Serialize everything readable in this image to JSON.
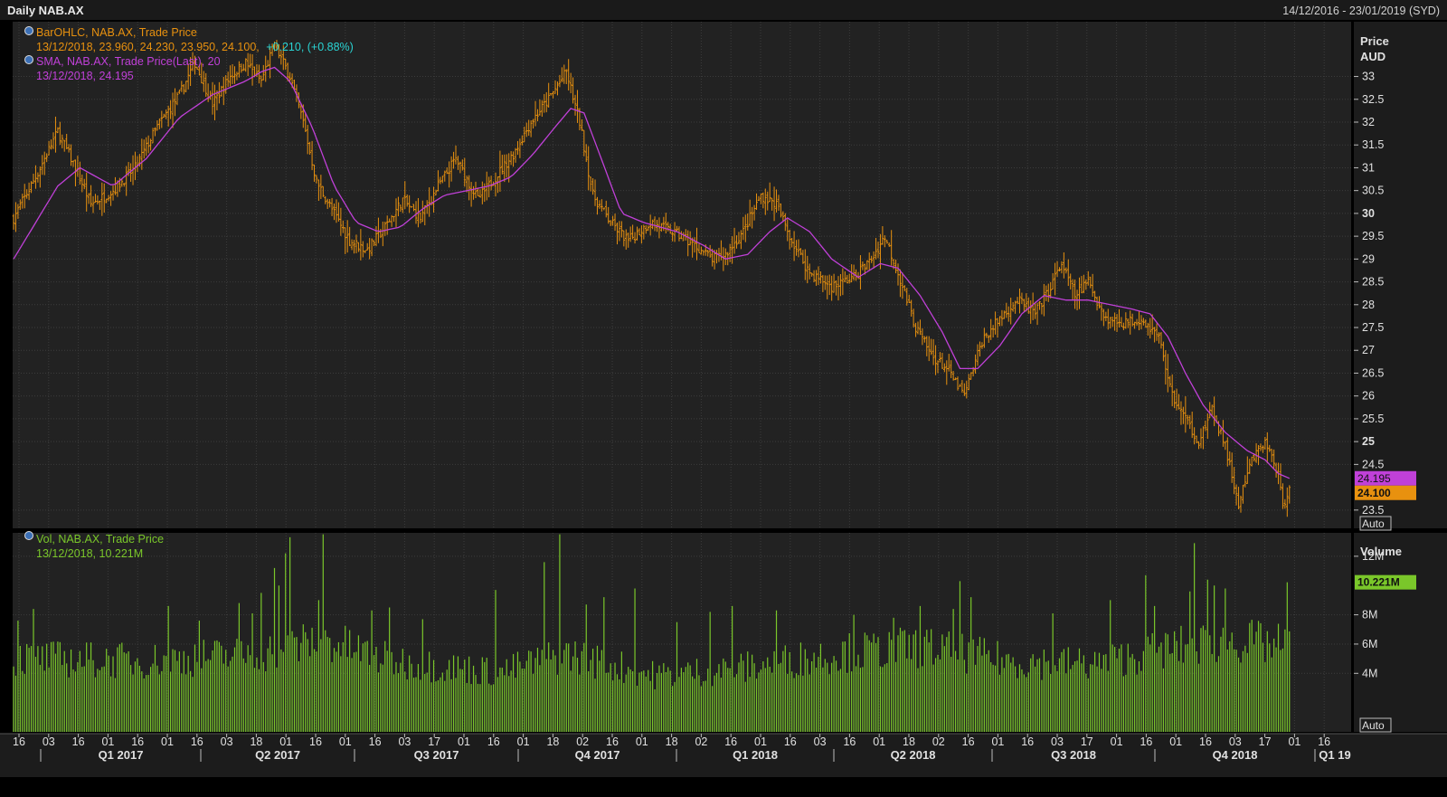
{
  "header": {
    "title": "Daily NAB.AX",
    "date_range": "14/12/2016 - 23/01/2019 (SYD)"
  },
  "colors": {
    "background": "#222222",
    "frame": "#000000",
    "grid": "#3c3c3c",
    "price_bars": "#e8910f",
    "sma_line": "#c040d8",
    "volume_bars": "#7ac72a",
    "legend_text": "#e8910f",
    "change_text": "#2ad4d4",
    "sma_text": "#c040d8",
    "volume_text": "#7ac72a"
  },
  "legend": {
    "ohlc_title": "BarOHLC, NAB.AX, Trade Price",
    "ohlc_values": "13/12/2018, 23.960, 24.230, 23.950, 24.100,",
    "ohlc_change": "+0.210, (+0.88%)",
    "sma_title": "SMA, NAB.AX, Trade Price(Last),  20",
    "sma_values": "13/12/2018, 24.195",
    "vol_title": "Vol, NAB.AX, Trade Price",
    "vol_values": "13/12/2018, 10.221M"
  },
  "price_axis": {
    "title": "Price",
    "unit": "AUD",
    "auto_label": "Auto",
    "last_sma": "24.195",
    "last_price": "24.100"
  },
  "volume_axis": {
    "title": "Volume",
    "auto_label": "Auto",
    "last_volume": "10.221M"
  },
  "chart_data": {
    "type": "ohlc-bar-with-sma-and-volume",
    "symbol": "NAB.AX",
    "price_ylim": [
      23.1,
      34.2
    ],
    "price_ticks": [
      {
        "v": 23.5,
        "label": "23.5",
        "bold": false
      },
      {
        "v": 24.5,
        "label": "24.5",
        "bold": false
      },
      {
        "v": 25,
        "label": "25",
        "bold": true
      },
      {
        "v": 25.5,
        "label": "25.5",
        "bold": false
      },
      {
        "v": 26,
        "label": "26",
        "bold": false
      },
      {
        "v": 26.5,
        "label": "26.5",
        "bold": false
      },
      {
        "v": 27,
        "label": "27",
        "bold": false
      },
      {
        "v": 27.5,
        "label": "27.5",
        "bold": false
      },
      {
        "v": 28,
        "label": "28",
        "bold": false
      },
      {
        "v": 28.5,
        "label": "28.5",
        "bold": false
      },
      {
        "v": 29,
        "label": "29",
        "bold": false
      },
      {
        "v": 29.5,
        "label": "29.5",
        "bold": false
      },
      {
        "v": 30,
        "label": "30",
        "bold": true
      },
      {
        "v": 30.5,
        "label": "30.5",
        "bold": false
      },
      {
        "v": 31,
        "label": "31",
        "bold": false
      },
      {
        "v": 31.5,
        "label": "31.5",
        "bold": false
      },
      {
        "v": 32,
        "label": "32",
        "bold": false
      },
      {
        "v": 32.5,
        "label": "32.5",
        "bold": false
      },
      {
        "v": 33,
        "label": "33",
        "bold": false
      }
    ],
    "volume_ylim": [
      0,
      13.6
    ],
    "volume_ticks": [
      {
        "v": 4,
        "label": "4M"
      },
      {
        "v": 6,
        "label": "6M"
      },
      {
        "v": 8,
        "label": "8M"
      },
      {
        "v": 12,
        "label": "12M"
      }
    ],
    "x_tick_labels": [
      "16",
      "03",
      "16",
      "01",
      "16",
      "01",
      "16",
      "03",
      "18",
      "01",
      "16",
      "01",
      "16",
      "03",
      "17",
      "01",
      "16",
      "01",
      "18",
      "02",
      "16",
      "01",
      "18",
      "02",
      "16",
      "01",
      "16",
      "03",
      "16",
      "01",
      "18",
      "02",
      "16",
      "01",
      "16",
      "03",
      "17",
      "01",
      "16",
      "01",
      "16",
      "03",
      "17",
      "01",
      "16"
    ],
    "quarter_labels": [
      "Q1 2017",
      "Q2 2017",
      "Q3 2017",
      "Q4 2017",
      "Q1 2018",
      "Q2 2018",
      "Q3 2018",
      "Q4 2018",
      "Q1 19"
    ],
    "price_path": [
      [
        0,
        29.9
      ],
      [
        10,
        30.8
      ],
      [
        20,
        31.8
      ],
      [
        28,
        31.0
      ],
      [
        35,
        30.2
      ],
      [
        45,
        30.5
      ],
      [
        55,
        31.0
      ],
      [
        65,
        31.9
      ],
      [
        75,
        32.6
      ],
      [
        82,
        33.3
      ],
      [
        90,
        32.4
      ],
      [
        98,
        33.0
      ],
      [
        105,
        33.3
      ],
      [
        112,
        32.9
      ],
      [
        118,
        33.7
      ],
      [
        125,
        33.0
      ],
      [
        131,
        32.0
      ],
      [
        137,
        30.7
      ],
      [
        145,
        30.0
      ],
      [
        152,
        29.4
      ],
      [
        160,
        29.2
      ],
      [
        168,
        29.7
      ],
      [
        176,
        30.3
      ],
      [
        184,
        29.9
      ],
      [
        192,
        30.6
      ],
      [
        200,
        31.2
      ],
      [
        210,
        30.3
      ],
      [
        218,
        30.8
      ],
      [
        226,
        31.3
      ],
      [
        234,
        32.0
      ],
      [
        242,
        32.5
      ],
      [
        250,
        33.1
      ],
      [
        256,
        32.0
      ],
      [
        262,
        30.4
      ],
      [
        270,
        29.8
      ],
      [
        278,
        29.4
      ],
      [
        288,
        29.8
      ],
      [
        298,
        29.6
      ],
      [
        308,
        29.3
      ],
      [
        316,
        29.0
      ],
      [
        322,
        29.1
      ],
      [
        330,
        29.6
      ],
      [
        338,
        30.4
      ],
      [
        345,
        30.2
      ],
      [
        352,
        29.4
      ],
      [
        360,
        28.7
      ],
      [
        370,
        28.4
      ],
      [
        380,
        28.6
      ],
      [
        388,
        29.0
      ],
      [
        394,
        29.5
      ],
      [
        400,
        28.7
      ],
      [
        408,
        27.5
      ],
      [
        415,
        26.9
      ],
      [
        422,
        26.6
      ],
      [
        430,
        26.0
      ],
      [
        438,
        27.2
      ],
      [
        446,
        27.7
      ],
      [
        454,
        28.1
      ],
      [
        462,
        27.8
      ],
      [
        468,
        28.3
      ],
      [
        474,
        28.9
      ],
      [
        480,
        28.2
      ],
      [
        486,
        28.5
      ],
      [
        494,
        27.7
      ],
      [
        502,
        27.6
      ],
      [
        510,
        27.7
      ],
      [
        518,
        27.3
      ],
      [
        524,
        26.0
      ],
      [
        530,
        25.5
      ],
      [
        536,
        25.0
      ],
      [
        542,
        25.7
      ],
      [
        548,
        24.9
      ],
      [
        554,
        23.6
      ],
      [
        560,
        24.6
      ],
      [
        566,
        25.0
      ],
      [
        572,
        24.3
      ],
      [
        574,
        23.5
      ],
      [
        577,
        24.1
      ]
    ],
    "sma_path": [
      [
        0,
        29.0
      ],
      [
        20,
        30.6
      ],
      [
        30,
        31.0
      ],
      [
        45,
        30.6
      ],
      [
        60,
        31.2
      ],
      [
        75,
        32.1
      ],
      [
        90,
        32.6
      ],
      [
        105,
        32.9
      ],
      [
        112,
        33.1
      ],
      [
        118,
        33.2
      ],
      [
        125,
        32.9
      ],
      [
        135,
        31.9
      ],
      [
        145,
        30.6
      ],
      [
        155,
        29.8
      ],
      [
        165,
        29.6
      ],
      [
        175,
        29.7
      ],
      [
        185,
        30.1
      ],
      [
        195,
        30.4
      ],
      [
        205,
        30.5
      ],
      [
        215,
        30.6
      ],
      [
        225,
        30.8
      ],
      [
        235,
        31.3
      ],
      [
        245,
        31.9
      ],
      [
        252,
        32.3
      ],
      [
        258,
        32.2
      ],
      [
        265,
        31.3
      ],
      [
        275,
        30.0
      ],
      [
        285,
        29.8
      ],
      [
        300,
        29.6
      ],
      [
        312,
        29.3
      ],
      [
        322,
        29.0
      ],
      [
        332,
        29.1
      ],
      [
        342,
        29.6
      ],
      [
        350,
        29.9
      ],
      [
        360,
        29.6
      ],
      [
        370,
        29.0
      ],
      [
        382,
        28.6
      ],
      [
        392,
        28.9
      ],
      [
        400,
        28.8
      ],
      [
        410,
        28.2
      ],
      [
        420,
        27.4
      ],
      [
        428,
        26.6
      ],
      [
        436,
        26.6
      ],
      [
        446,
        27.1
      ],
      [
        456,
        27.8
      ],
      [
        466,
        28.2
      ],
      [
        476,
        28.1
      ],
      [
        486,
        28.1
      ],
      [
        496,
        28.0
      ],
      [
        506,
        27.9
      ],
      [
        514,
        27.8
      ],
      [
        522,
        27.3
      ],
      [
        530,
        26.5
      ],
      [
        538,
        25.8
      ],
      [
        548,
        25.2
      ],
      [
        558,
        24.8
      ],
      [
        566,
        24.6
      ],
      [
        572,
        24.3
      ],
      [
        577,
        24.195
      ]
    ],
    "volume_envelope": [
      [
        0,
        5.2
      ],
      [
        60,
        5.0
      ],
      [
        110,
        5.5
      ],
      [
        140,
        6.5
      ],
      [
        170,
        5.0
      ],
      [
        220,
        4.2
      ],
      [
        250,
        5.5
      ],
      [
        290,
        4.0
      ],
      [
        330,
        4.5
      ],
      [
        370,
        5.5
      ],
      [
        410,
        6.0
      ],
      [
        450,
        5.0
      ],
      [
        490,
        4.8
      ],
      [
        520,
        5.8
      ],
      [
        550,
        6.5
      ],
      [
        577,
        6.0
      ]
    ],
    "volume_spikes": [
      [
        2,
        7.6
      ],
      [
        9,
        8.4
      ],
      [
        70,
        8.6
      ],
      [
        84,
        7.6
      ],
      [
        102,
        8.8
      ],
      [
        108,
        8.1
      ],
      [
        112,
        9.5
      ],
      [
        118,
        11.2
      ],
      [
        120,
        10.0
      ],
      [
        123,
        12.2
      ],
      [
        125,
        13.3
      ],
      [
        138,
        9.0
      ],
      [
        140,
        13.5
      ],
      [
        162,
        8.3
      ],
      [
        170,
        8.5
      ],
      [
        185,
        7.7
      ],
      [
        218,
        9.7
      ],
      [
        240,
        11.6
      ],
      [
        247,
        13.5
      ],
      [
        259,
        8.7
      ],
      [
        267,
        9.2
      ],
      [
        281,
        9.8
      ],
      [
        300,
        7.5
      ],
      [
        315,
        8.2
      ],
      [
        325,
        8.6
      ],
      [
        345,
        8.3
      ],
      [
        380,
        8.0
      ],
      [
        398,
        7.8
      ],
      [
        410,
        8.6
      ],
      [
        425,
        8.4
      ],
      [
        428,
        10.3
      ],
      [
        433,
        9.2
      ],
      [
        470,
        8.1
      ],
      [
        496,
        9.0
      ],
      [
        512,
        10.7
      ],
      [
        516,
        8.6
      ],
      [
        532,
        9.6
      ],
      [
        534,
        12.9
      ],
      [
        540,
        10.4
      ],
      [
        543,
        10.0
      ],
      [
        548,
        9.8
      ],
      [
        576,
        10.221
      ]
    ],
    "last_bar": {
      "date": "13/12/2018",
      "open": 23.96,
      "high": 24.23,
      "low": 23.95,
      "close": 24.1,
      "change": 0.21,
      "change_pct": 0.88,
      "sma20": 24.195,
      "volume_millions": 10.221
    }
  }
}
